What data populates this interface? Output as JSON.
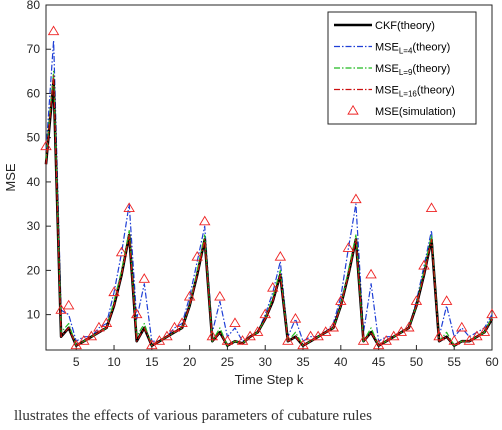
{
  "chart_data": {
    "type": "line",
    "xlabel": "Time Step k",
    "ylabel": "MSE",
    "xlim": [
      1,
      60
    ],
    "ylim": [
      2,
      80
    ],
    "xticks": [
      5,
      10,
      15,
      20,
      25,
      30,
      35,
      40,
      45,
      50,
      55,
      60
    ],
    "yticks": [
      10,
      20,
      30,
      40,
      50,
      60,
      70,
      80
    ],
    "grid": false,
    "legend_position": "top-right",
    "x": [
      1,
      2,
      3,
      4,
      5,
      6,
      7,
      8,
      9,
      10,
      11,
      12,
      13,
      14,
      15,
      16,
      17,
      18,
      19,
      20,
      21,
      22,
      23,
      24,
      25,
      26,
      27,
      28,
      29,
      30,
      31,
      32,
      33,
      34,
      35,
      36,
      37,
      38,
      39,
      40,
      41,
      42,
      43,
      44,
      45,
      46,
      47,
      48,
      49,
      50,
      51,
      52,
      53,
      54,
      55,
      56,
      57,
      58,
      59,
      60
    ],
    "series": [
      {
        "name": "CKF(theory)",
        "color": "#000000",
        "style": "solid",
        "width": 2.6,
        "values": [
          44,
          63,
          5,
          7,
          3,
          4,
          5,
          6,
          7,
          12,
          19,
          28,
          4,
          7,
          3,
          4,
          5,
          6,
          7,
          12,
          19,
          27,
          4,
          6,
          3,
          4,
          3.5,
          5,
          6,
          9,
          13,
          19,
          4,
          5,
          3,
          4,
          5,
          6,
          7,
          12,
          19,
          27,
          4,
          6,
          3,
          4,
          5,
          6,
          7,
          12,
          19,
          27,
          4,
          5,
          3,
          4,
          4,
          5,
          6,
          9
        ]
      },
      {
        "name": "MSE",
        "legend_sub": "L=4",
        "legend_tail": "(theory)",
        "color": "#1f3fd6",
        "style": "dashdot",
        "width": 1.2,
        "values": [
          47,
          72,
          11,
          10,
          4,
          5,
          5,
          7,
          8,
          15,
          24,
          35,
          9,
          17,
          4,
          4,
          5,
          7,
          8,
          14,
          22,
          30,
          6,
          13,
          5,
          7,
          4,
          5,
          6,
          10,
          15,
          22,
          5,
          9,
          4,
          5,
          5,
          6,
          8,
          14,
          25,
          35,
          6,
          17,
          4,
          5,
          5,
          6,
          7,
          13,
          21,
          29,
          5,
          12,
          5,
          7,
          5,
          6,
          7,
          10
        ]
      },
      {
        "name": "MSE",
        "legend_sub": "L=9",
        "legend_tail": "(theory)",
        "color": "#22bb22",
        "style": "dashdot",
        "width": 1.2,
        "values": [
          45,
          65,
          6,
          8,
          3,
          4,
          5,
          6,
          7,
          13,
          20,
          29,
          5,
          8,
          3,
          4,
          5,
          6,
          7,
          12,
          20,
          28,
          4,
          7,
          3,
          4,
          3.5,
          5,
          6,
          9,
          14,
          20,
          4,
          6,
          3,
          4,
          5,
          6,
          7,
          12,
          20,
          28,
          4,
          7,
          3,
          4,
          5,
          6,
          7,
          12,
          20,
          28,
          4,
          6,
          3,
          4,
          4,
          5,
          6,
          9.5
        ]
      },
      {
        "name": "MSE",
        "legend_sub": "L=16",
        "legend_tail": "(theory)",
        "color": "#cc1111",
        "style": "dashdot",
        "width": 1.2,
        "values": [
          44,
          64,
          5,
          7,
          3,
          4,
          5,
          6,
          7,
          12,
          19,
          28,
          4,
          7,
          3,
          4,
          5,
          6,
          7,
          12,
          19,
          27,
          4,
          6,
          3,
          4,
          3.5,
          5,
          6,
          9,
          13,
          19,
          4,
          5,
          3,
          4,
          5,
          6,
          7,
          12,
          19,
          27,
          4,
          6,
          3,
          4,
          5,
          6,
          7,
          12,
          19,
          27,
          4,
          5,
          3,
          4,
          4,
          5,
          6,
          9
        ]
      },
      {
        "name": "MSE(simulation)",
        "color": "#ee2222",
        "style": "marker-triangle",
        "values": [
          48,
          74,
          11,
          12,
          3,
          4,
          5,
          7,
          8,
          15,
          24,
          34,
          10,
          18,
          3,
          4,
          5,
          7,
          8,
          14,
          23,
          31,
          5,
          14,
          4,
          8,
          4,
          5,
          6,
          10,
          16,
          23,
          4,
          9,
          3,
          5,
          5,
          6,
          7,
          13,
          25,
          36,
          4,
          19,
          3,
          4,
          5,
          6,
          7,
          13,
          21,
          34,
          5,
          13,
          4,
          7,
          4,
          5,
          6,
          10
        ]
      }
    ]
  },
  "caption": "llustrates the effects of various parameters of cubature rules"
}
